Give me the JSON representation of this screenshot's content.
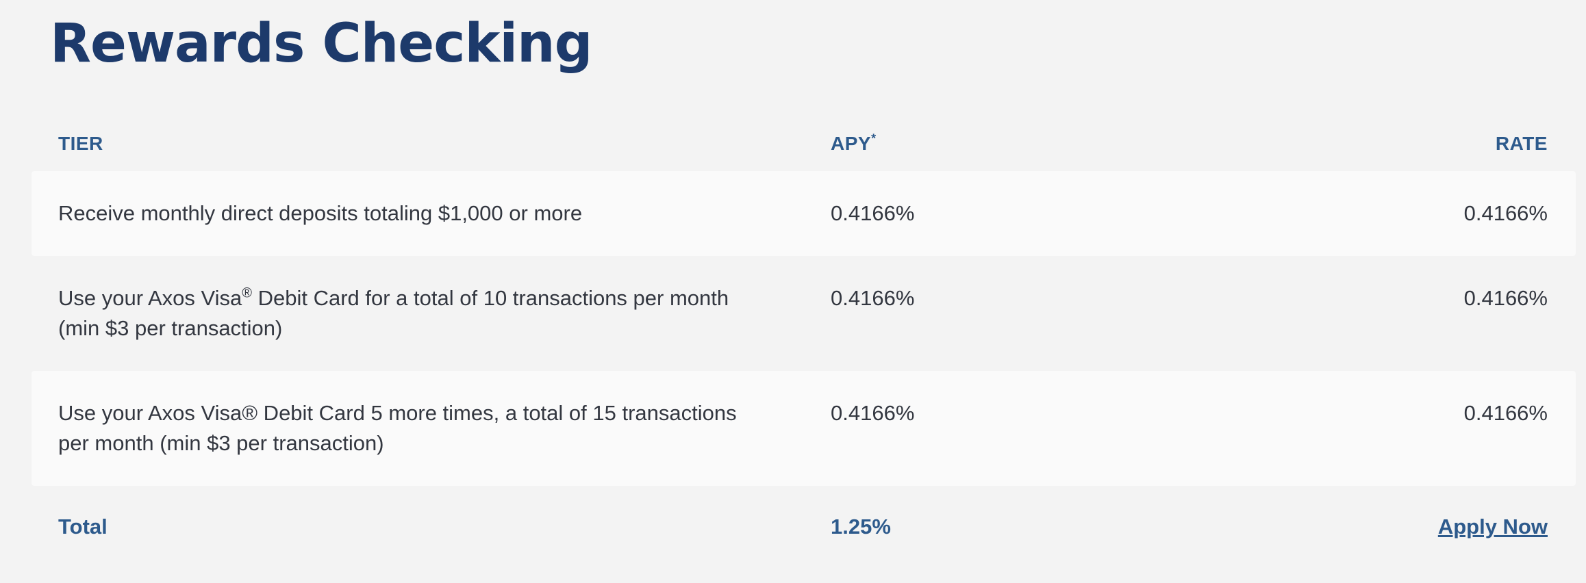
{
  "page": {
    "title": "Rewards Checking"
  },
  "table": {
    "headers": {
      "tier": "TIER",
      "apy": "APY",
      "apy_note": "*",
      "rate": "RATE"
    },
    "rows": [
      {
        "tier_pre": "Receive monthly direct deposits totaling $1,000 or more",
        "tier_sup": "",
        "tier_post": "",
        "apy": "0.4166%",
        "rate": "0.4166%"
      },
      {
        "tier_pre": "Use your Axos Visa",
        "tier_sup": "®",
        "tier_post": " Debit Card for a total of 10 transactions per month (min $3 per transaction)",
        "apy": "0.4166%",
        "rate": "0.4166%"
      },
      {
        "tier_pre": "Use your Axos Visa® Debit Card 5 more times, a total of 15 transactions per month (min $3 per transaction)",
        "tier_sup": "",
        "tier_post": "",
        "apy": "0.4166%",
        "rate": "0.4166%"
      }
    ],
    "total": {
      "label": "Total",
      "apy": "1.25%",
      "action_label": "Apply Now"
    }
  },
  "colors": {
    "title": "#1d3a6b",
    "header": "#2d5a8c",
    "body_text": "#333740",
    "page_bg": "#f3f3f3",
    "row_bg": "#fafafa"
  }
}
